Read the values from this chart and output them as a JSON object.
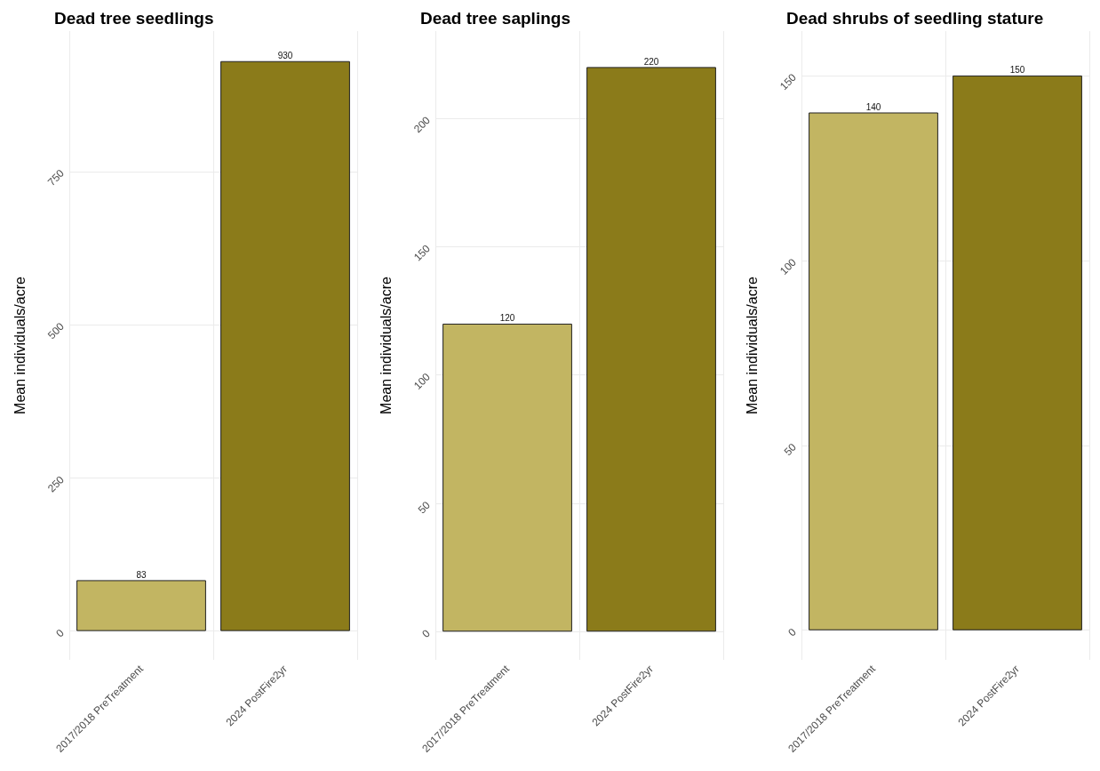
{
  "chart_data": [
    {
      "type": "bar",
      "title": "Dead tree seedlings",
      "ylabel": "Mean individuals/acre",
      "categories": [
        "2017/2018 PreTreatment",
        "2024 PostFire2yr"
      ],
      "values": [
        83,
        930
      ],
      "data_labels": true,
      "colors": [
        "#c2b562",
        "#8b7b1a"
      ],
      "ylim": [
        -47,
        979
      ],
      "yticks": [
        0,
        250,
        500,
        750
      ],
      "grid": true
    },
    {
      "type": "bar",
      "title": "Dead tree saplings",
      "ylabel": "Mean individuals/acre",
      "categories": [
        "2017/2018 PreTreatment",
        "2024 PostFire2yr"
      ],
      "values": [
        120,
        220
      ],
      "data_labels": true,
      "colors": [
        "#c2b562",
        "#8b7b1a"
      ],
      "ylim": [
        -11,
        234
      ],
      "yticks": [
        0,
        50,
        100,
        150,
        200
      ],
      "grid": true
    },
    {
      "type": "bar",
      "title": "Dead shrubs of seedling stature",
      "ylabel": "Mean individuals/acre",
      "categories": [
        "2017/2018 PreTreatment",
        "2024 PostFire2yr"
      ],
      "values": [
        140,
        150
      ],
      "data_labels": true,
      "colors": [
        "#c2b562",
        "#8b7b1a"
      ],
      "ylim": [
        -8,
        162
      ],
      "yticks": [
        0,
        50,
        100,
        150
      ],
      "grid": true
    }
  ]
}
